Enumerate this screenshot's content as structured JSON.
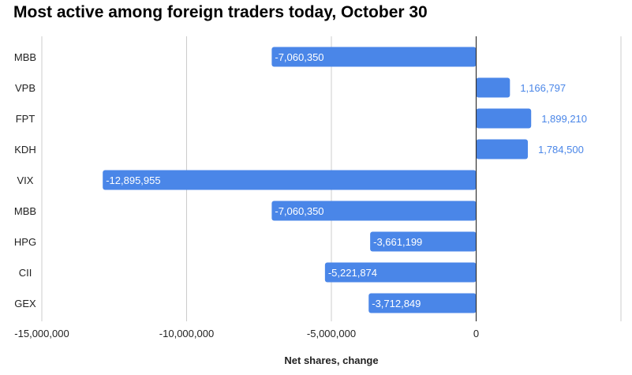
{
  "chart_data": {
    "type": "bar",
    "orientation": "horizontal",
    "title": "Most active among foreign traders today, October 30",
    "xlabel": "Net shares, change",
    "ylabel": "",
    "categories": [
      "MBB",
      "VPB",
      "FPT",
      "KDH",
      "VIX",
      "MBB",
      "HPG",
      "CII",
      "GEX"
    ],
    "values": [
      -7060350,
      1166797,
      1899210,
      1784500,
      -12895955,
      -7060350,
      -3661199,
      -5221874,
      -3712849
    ],
    "data_labels": [
      "-7,060,350",
      "1,166,797",
      "1,899,210",
      "1,784,500",
      "-12,895,955",
      "-7,060,350",
      "-3,661,199",
      "-5,221,874",
      "-3,712,849"
    ],
    "xlim": [
      -15000000,
      5000000
    ],
    "x_ticks": [
      -15000000,
      -10000000,
      -5000000,
      0
    ],
    "x_tick_labels": [
      "-15,000,000",
      "-10,000,000",
      "-5,000,000",
      "0"
    ],
    "grid": true,
    "legend": "none",
    "colors": {
      "bar": "#4a86e8",
      "label_inside": "#ffffff",
      "label_outside": "#4a86e8",
      "grid": "#cccccc",
      "zero_line": "#333333",
      "text": "#222222"
    }
  }
}
